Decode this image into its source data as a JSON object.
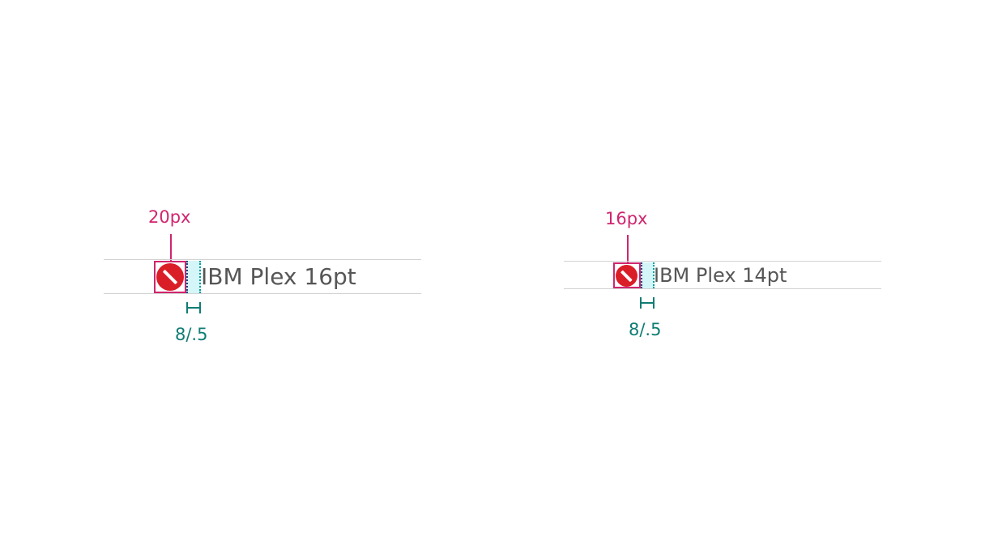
{
  "specs": [
    {
      "icon_size_label": "20px",
      "icon_name": "not-allowed-icon",
      "text_sample": "IBM Plex 16pt",
      "spacing_label": "8/.5"
    },
    {
      "icon_size_label": "16px",
      "icon_name": "not-allowed-icon",
      "text_sample": "IBM Plex 14pt",
      "spacing_label": "8/.5"
    }
  ],
  "colors": {
    "annotation_magenta": "#d0256e",
    "spacing_teal": "#0f7d74",
    "icon_red": "#da1e28",
    "text_gray": "#565656",
    "guide_gray": "#d2d2d2",
    "spacing_fill": "#d5f6f8"
  }
}
